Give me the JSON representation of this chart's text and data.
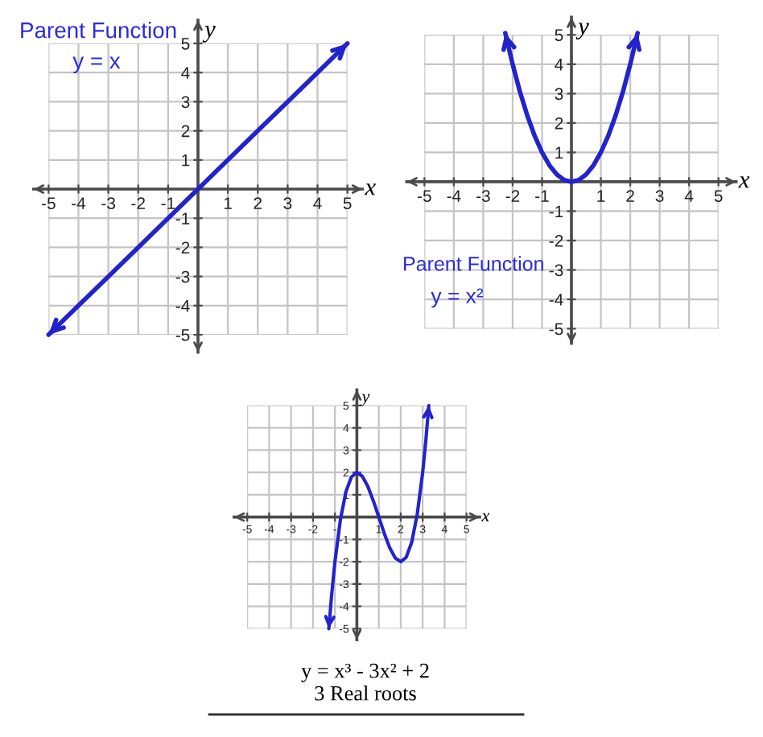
{
  "chart_data": [
    {
      "type": "line",
      "title": "Parent Function",
      "subtitle": "y = x",
      "xlabel": "x",
      "ylabel": "y",
      "xlim": [
        -5.5,
        5.5
      ],
      "ylim": [
        -5.6,
        5.8
      ],
      "xticks": [
        -5,
        -4,
        -3,
        -2,
        -1,
        1,
        2,
        3,
        4,
        5
      ],
      "yticks": [
        -5,
        -4,
        -3,
        -2,
        -1,
        1,
        2,
        3,
        4,
        5
      ],
      "grid": true,
      "series": [
        {
          "color": "#2323cc",
          "x": [
            -5,
            -4,
            -3,
            -2,
            -1,
            0,
            1,
            2,
            3,
            4,
            5
          ],
          "values": [
            -5,
            -4,
            -3,
            -2,
            -1,
            0,
            1,
            2,
            3,
            4,
            5
          ]
        }
      ]
    },
    {
      "type": "line",
      "title": "Parent Function",
      "subtitle": "y = x²",
      "xlabel": "x",
      "ylabel": "y",
      "xlim": [
        -5.6,
        5.6
      ],
      "ylim": [
        -5.5,
        5.6
      ],
      "xticks": [
        -5,
        -4,
        -3,
        -2,
        -1,
        1,
        2,
        3,
        4,
        5
      ],
      "yticks": [
        -5,
        -4,
        -3,
        -2,
        -1,
        1,
        2,
        3,
        4,
        5
      ],
      "grid": true,
      "series": [
        {
          "color": "#2323cc",
          "x": [
            -2.25,
            -2,
            -1.75,
            -1.5,
            -1.25,
            -1,
            -0.75,
            -0.5,
            -0.25,
            0,
            0.25,
            0.5,
            0.75,
            1,
            1.25,
            1.5,
            1.75,
            2,
            2.25
          ],
          "values": [
            5.06,
            4,
            3.06,
            2.25,
            1.56,
            1,
            0.56,
            0.25,
            0.06,
            0,
            0.06,
            0.25,
            0.56,
            1,
            1.56,
            2.25,
            3.06,
            4,
            5.06
          ]
        }
      ]
    },
    {
      "type": "line",
      "title": "y = x³ - 3x² + 2",
      "subtitle": "3 Real roots",
      "xlabel": "x",
      "ylabel": "y",
      "xlim": [
        -5.6,
        5.6
      ],
      "ylim": [
        -5.5,
        5.7
      ],
      "xticks": [
        -5,
        -4,
        -3,
        -2,
        {
          "value": -1,
          "label": "-"
        },
        1,
        2,
        3,
        4,
        5
      ],
      "yticks": [
        -5,
        -4,
        -3,
        -2,
        -1,
        1,
        2,
        3,
        4,
        5
      ],
      "grid": true,
      "series": [
        {
          "color": "#2323cc",
          "x": [
            -1.28,
            -1.15,
            -1,
            -0.75,
            -0.5,
            -0.25,
            0,
            0.25,
            0.5,
            0.75,
            1,
            1.25,
            1.5,
            1.75,
            2,
            2.25,
            2.5,
            2.75,
            3,
            3.15,
            3.28
          ],
          "values": [
            -5,
            -3.49,
            -2,
            -0.11,
            1.13,
            1.8,
            2,
            1.83,
            1.38,
            0.73,
            0,
            -0.73,
            -1.38,
            -1.83,
            -2,
            -1.8,
            -1.13,
            0.11,
            2,
            3.49,
            5
          ]
        }
      ]
    }
  ]
}
